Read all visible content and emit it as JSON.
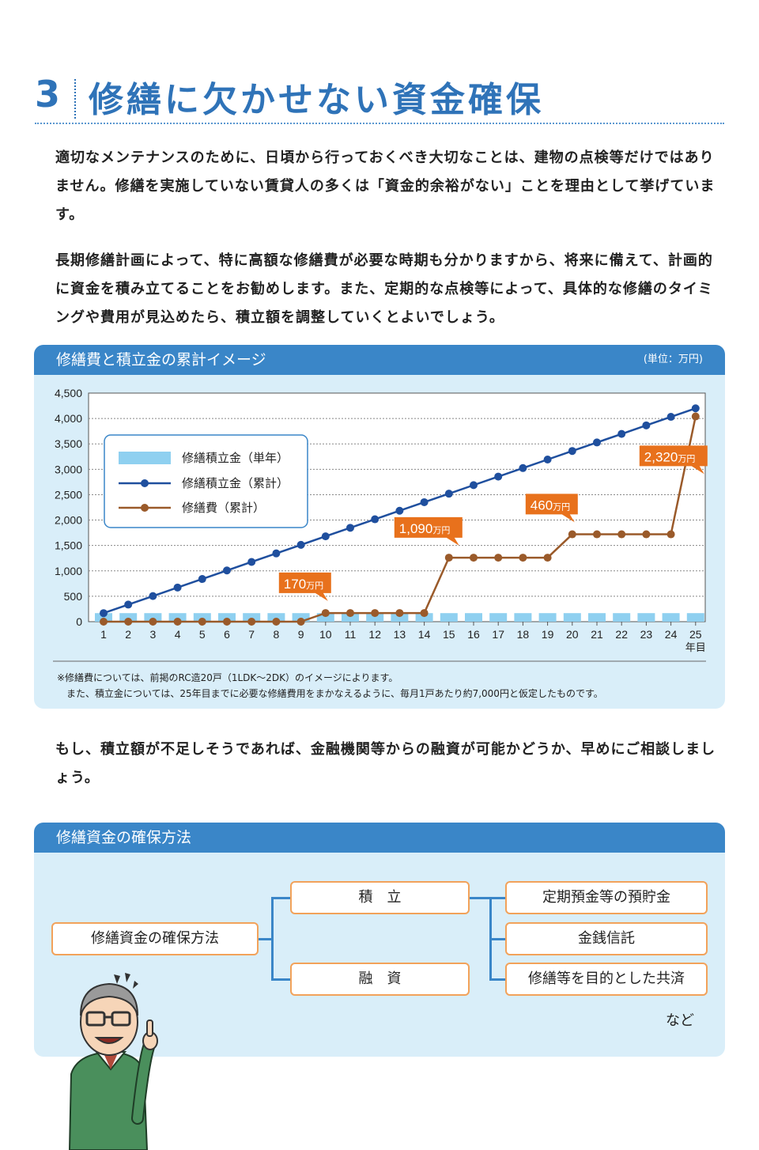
{
  "header": {
    "number": "3",
    "title": "修繕に欠かせない資金確保"
  },
  "paragraphs": [
    "適切なメンテナンスのために、日頃から行っておくべき大切なことは、建物の点検等だけではありません。修繕を実施していない賃貸人の多くは「資金的余裕がない」ことを理由として挙げています。",
    "長期修繕計画によって、特に高額な修繕費が必要な時期も分かりますから、将来に備えて、計画的に資金を積み立てることをお勧めします。また、定期的な点検等によって、具体的な修繕のタイミングや費用が見込めたら、積立額を調整していくとよいでしょう。",
    "もし、積立額が不足しそうであれば、金融機関等からの融資が可能かどうか、早めにご相談しましょう。"
  ],
  "chart_panel": {
    "title": "修繕費と積立金の累計イメージ",
    "unit": "(単位：万円)"
  },
  "chart_data": {
    "type": "line",
    "title": "修繕費と積立金の累計イメージ",
    "unit": "(単位：万円)",
    "x": [
      "1",
      "2",
      "3",
      "4",
      "5",
      "6",
      "7",
      "8",
      "9",
      "10",
      "11",
      "12",
      "13",
      "14",
      "15",
      "16",
      "17",
      "18",
      "19",
      "20",
      "21",
      "22",
      "23",
      "24",
      "25"
    ],
    "xlabel": "年目",
    "ylim": [
      0,
      4500
    ],
    "yticks": [
      "0",
      "500",
      "1,000",
      "1,500",
      "2,000",
      "2,500",
      "3,000",
      "3,500",
      "4,000",
      "4,500"
    ],
    "ytick_values": [
      0,
      500,
      1000,
      1500,
      2000,
      2500,
      3000,
      3500,
      4000,
      4500
    ],
    "grid": true,
    "legend_position": "top-left",
    "series": [
      {
        "name": "修繕積立金（単年）",
        "type": "bar",
        "color": "#8fd0f0",
        "values": [
          168,
          168,
          168,
          168,
          168,
          168,
          168,
          168,
          168,
          168,
          168,
          168,
          168,
          168,
          168,
          168,
          168,
          168,
          168,
          168,
          168,
          168,
          168,
          168,
          168
        ]
      },
      {
        "name": "修繕積立金（累計）",
        "type": "line",
        "color": "#1f4f9e",
        "values": [
          168,
          336,
          504,
          672,
          840,
          1008,
          1176,
          1344,
          1512,
          1680,
          1848,
          2016,
          2184,
          2352,
          2520,
          2688,
          2856,
          3024,
          3192,
          3360,
          3528,
          3696,
          3864,
          4032,
          4200
        ]
      },
      {
        "name": "修繕費（累計）",
        "type": "line",
        "color": "#9a5a2a",
        "values": [
          0,
          0,
          0,
          0,
          0,
          0,
          0,
          0,
          0,
          170,
          170,
          170,
          170,
          170,
          1260,
          1260,
          1260,
          1260,
          1260,
          1720,
          1720,
          1720,
          1720,
          1720,
          4040
        ]
      }
    ],
    "annotations": [
      {
        "at": "10",
        "value": "170",
        "unit": "万円"
      },
      {
        "at": "15",
        "value": "1,090",
        "unit": "万円"
      },
      {
        "at": "20",
        "value": "460",
        "unit": "万円"
      },
      {
        "at": "25",
        "value": "2,320",
        "unit": "万円"
      }
    ]
  },
  "notes": [
    "※修繕費については、前掲のRC造20戸（1LDK〜2DK）のイメージによります。",
    "また、積立金については、25年目までに必要な修繕費用をまかなえるように、毎月1戸あたり約7,000円と仮定したものです。"
  ],
  "method_panel": {
    "title": "修繕資金の確保方法",
    "root": "修繕資金の確保方法",
    "branches": [
      "積　立",
      "融　資"
    ],
    "leaves": [
      "定期預金等の預貯金",
      "金銭信託",
      "修繕等を目的とした共済"
    ],
    "footer": "など"
  },
  "colors": {
    "accent": "#2f73b8",
    "panel_bg": "#d9eef9",
    "header_bg": "#3a86c8",
    "callout": "#e8711c",
    "node_border": "#f2a25a"
  }
}
